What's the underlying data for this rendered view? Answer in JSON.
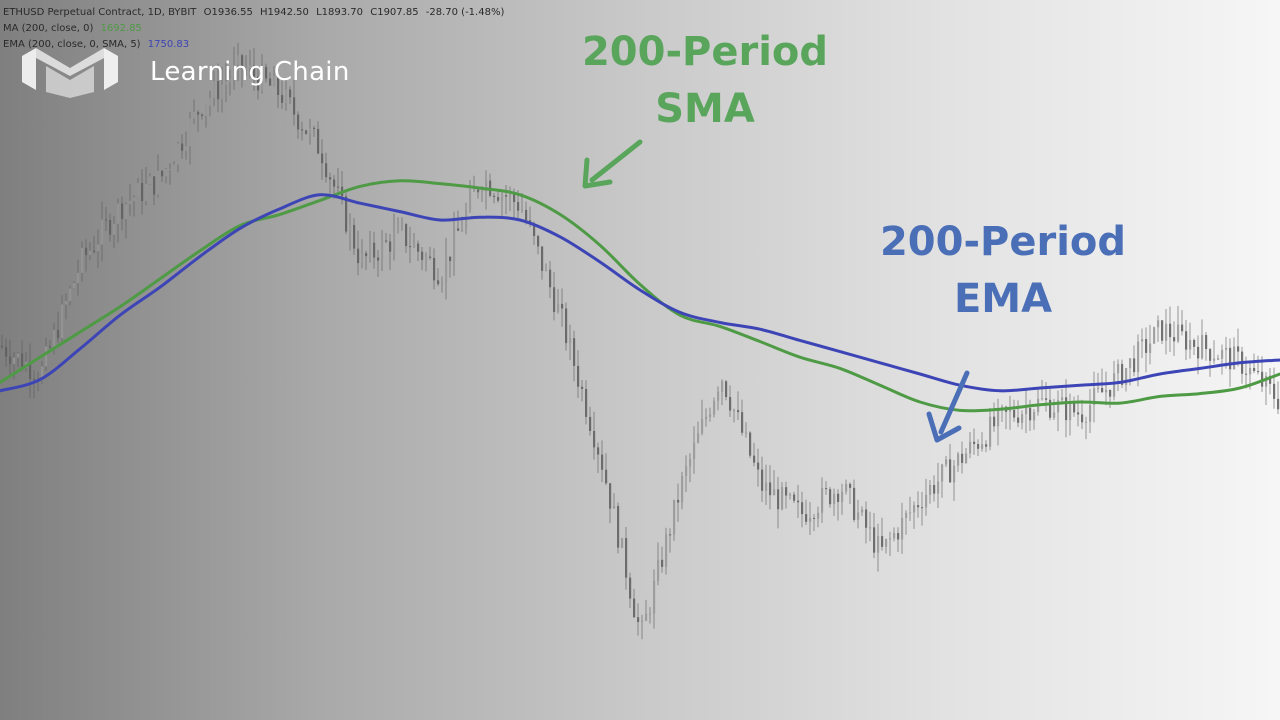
{
  "legend": {
    "symbol": "ETHUSD Perpetual Contract, 1D, BYBIT",
    "open": "O1936.55",
    "high": "H1942.50",
    "low": "L1893.70",
    "close": "C1907.85",
    "change": "-28.70 (-1.48%)",
    "ma_label": "MA (200, close, 0)",
    "ma_value": "1692.85",
    "ema_label": "EMA (200, close, 0, SMA, 5)",
    "ema_value": "1750.83"
  },
  "brand": {
    "name": "Learning Chain",
    "icon": "learning-chain-logo-icon"
  },
  "annotations": {
    "sma": {
      "line1": "200-Period",
      "line2": "SMA",
      "color": "#5aa55c"
    },
    "ema": {
      "line1": "200-Period",
      "line2": "EMA",
      "color": "#4a6fb7"
    }
  },
  "chart_data": {
    "type": "line",
    "instrument": "ETHUSD Perpetual Contract",
    "timeframe": "1D",
    "exchange": "BYBIT",
    "x": [
      0,
      40,
      80,
      120,
      160,
      200,
      240,
      280,
      320,
      360,
      400,
      440,
      480,
      520,
      560,
      600,
      640,
      680,
      720,
      760,
      800,
      840,
      880,
      920,
      960,
      1000,
      1040,
      1080,
      1120,
      1160,
      1200,
      1240,
      1280
    ],
    "price_path": [
      1650,
      1600,
      1800,
      1900,
      1950,
      2080,
      2150,
      2100,
      2000,
      1800,
      1850,
      1780,
      1950,
      1900,
      1700,
      1450,
      1130,
      1400,
      1600,
      1400,
      1350,
      1400,
      1280,
      1380,
      1450,
      1520,
      1550,
      1530,
      1600,
      1680,
      1650,
      1620,
      1550
    ],
    "series": [
      {
        "name": "MA (200, close, 0)",
        "color": "#4e9a45",
        "values": [
          1585,
          1630,
          1675,
          1720,
          1770,
          1820,
          1865,
          1885,
          1910,
          1935,
          1945,
          1940,
          1932,
          1920,
          1885,
          1830,
          1760,
          1705,
          1685,
          1658,
          1630,
          1610,
          1580,
          1550,
          1535,
          1537,
          1545,
          1550,
          1548,
          1560,
          1565,
          1575,
          1600
        ]
      },
      {
        "name": "EMA (200, close, 0, SMA, 5)",
        "color": "#3d45b6",
        "values": [
          1570,
          1590,
          1645,
          1705,
          1755,
          1810,
          1860,
          1895,
          1920,
          1905,
          1890,
          1875,
          1880,
          1875,
          1845,
          1800,
          1750,
          1710,
          1692,
          1680,
          1660,
          1640,
          1620,
          1600,
          1580,
          1570,
          1575,
          1580,
          1585,
          1600,
          1610,
          1620,
          1625
        ]
      }
    ],
    "ylim": [
      1000,
      2250
    ],
    "grid": false
  }
}
